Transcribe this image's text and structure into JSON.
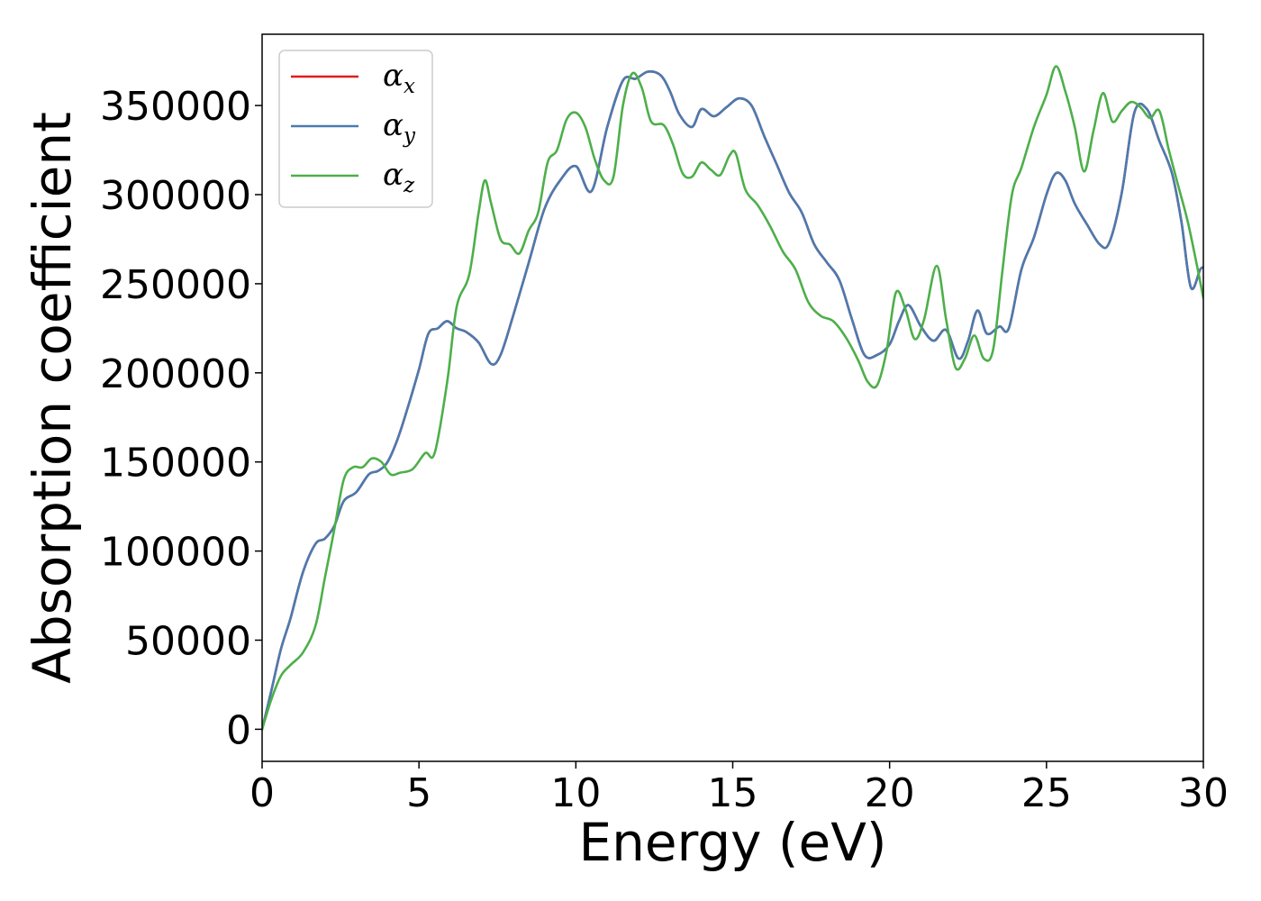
{
  "chart_data": {
    "type": "line",
    "xlabel": "Energy (eV)",
    "ylabel": "Absorption coefficient",
    "xlim": [
      0,
      30
    ],
    "ylim": [
      -18000,
      390000
    ],
    "xticks": [
      0,
      5,
      10,
      15,
      20,
      25,
      30
    ],
    "yticks": [
      0,
      50000,
      100000,
      150000,
      200000,
      250000,
      300000,
      350000
    ],
    "grid": false,
    "legend_position": "top-left",
    "series": [
      {
        "name": "αx",
        "base": "α",
        "sub": "x",
        "color": "#e41a1c",
        "x": [
          0,
          0.3,
          0.6,
          0.9,
          1.3,
          1.7,
          2.0,
          2.3,
          2.6,
          3.0,
          3.4,
          3.7,
          4.0,
          4.3,
          4.6,
          5.0,
          5.3,
          5.6,
          5.9,
          6.2,
          6.5,
          6.9,
          7.3,
          7.6,
          8.0,
          8.5,
          9.0,
          9.5,
          10.0,
          10.5,
          11.0,
          11.5,
          11.9,
          12.3,
          12.7,
          13.0,
          13.3,
          13.7,
          14.0,
          14.4,
          14.8,
          15.2,
          15.6,
          16.0,
          16.4,
          16.8,
          17.2,
          17.6,
          18.0,
          18.4,
          18.8,
          19.2,
          19.6,
          20.0,
          20.3,
          20.6,
          21.0,
          21.4,
          21.8,
          22.2,
          22.5,
          22.8,
          23.1,
          23.5,
          23.8,
          24.2,
          24.6,
          25.0,
          25.3,
          25.6,
          25.9,
          26.3,
          26.7,
          27.0,
          27.4,
          27.8,
          28.2,
          28.6,
          29.0,
          29.3,
          29.6,
          29.9,
          30.0
        ],
        "values": [
          0,
          22000,
          45000,
          62000,
          88000,
          104000,
          107000,
          114000,
          128000,
          133000,
          143000,
          145000,
          150000,
          162000,
          178000,
          202000,
          222000,
          225000,
          229000,
          225000,
          223000,
          217000,
          205000,
          210000,
          232000,
          262000,
          292000,
          308000,
          316000,
          302000,
          338000,
          364000,
          365000,
          369000,
          367000,
          358000,
          345000,
          338000,
          348000,
          344000,
          349000,
          354000,
          350000,
          333000,
          317000,
          301000,
          290000,
          272000,
          262000,
          252000,
          230000,
          210000,
          210000,
          216000,
          229000,
          238000,
          226000,
          218000,
          224000,
          208000,
          218000,
          235000,
          222000,
          226000,
          225000,
          258000,
          276000,
          300000,
          312000,
          308000,
          295000,
          283000,
          272000,
          273000,
          301000,
          346000,
          348000,
          330000,
          312000,
          285000,
          248000,
          258000,
          259000
        ]
      },
      {
        "name": "αy",
        "base": "α",
        "sub": "y",
        "color": "#4a7bb0",
        "x": [
          0,
          0.3,
          0.6,
          0.9,
          1.3,
          1.7,
          2.0,
          2.3,
          2.6,
          3.0,
          3.4,
          3.7,
          4.0,
          4.3,
          4.6,
          5.0,
          5.3,
          5.6,
          5.9,
          6.2,
          6.5,
          6.9,
          7.3,
          7.6,
          8.0,
          8.5,
          9.0,
          9.5,
          10.0,
          10.5,
          11.0,
          11.5,
          11.9,
          12.3,
          12.7,
          13.0,
          13.3,
          13.7,
          14.0,
          14.4,
          14.8,
          15.2,
          15.6,
          16.0,
          16.4,
          16.8,
          17.2,
          17.6,
          18.0,
          18.4,
          18.8,
          19.2,
          19.6,
          20.0,
          20.3,
          20.6,
          21.0,
          21.4,
          21.8,
          22.2,
          22.5,
          22.8,
          23.1,
          23.5,
          23.8,
          24.2,
          24.6,
          25.0,
          25.3,
          25.6,
          25.9,
          26.3,
          26.7,
          27.0,
          27.4,
          27.8,
          28.2,
          28.6,
          29.0,
          29.3,
          29.6,
          29.9,
          30.0
        ],
        "values": [
          0,
          22000,
          45000,
          62000,
          88000,
          104000,
          107000,
          114000,
          128000,
          133000,
          143000,
          145000,
          150000,
          162000,
          178000,
          202000,
          222000,
          225000,
          229000,
          225000,
          223000,
          217000,
          205000,
          210000,
          232000,
          262000,
          292000,
          308000,
          316000,
          302000,
          338000,
          364000,
          365000,
          369000,
          367000,
          358000,
          345000,
          338000,
          348000,
          344000,
          349000,
          354000,
          350000,
          333000,
          317000,
          301000,
          290000,
          272000,
          262000,
          252000,
          230000,
          210000,
          210000,
          216000,
          229000,
          238000,
          226000,
          218000,
          224000,
          208000,
          218000,
          235000,
          222000,
          226000,
          225000,
          258000,
          276000,
          300000,
          312000,
          308000,
          295000,
          283000,
          272000,
          273000,
          301000,
          346000,
          348000,
          330000,
          312000,
          285000,
          248000,
          258000,
          259000
        ]
      },
      {
        "name": "αz",
        "base": "α",
        "sub": "z",
        "color": "#4daf4a",
        "x": [
          0,
          0.3,
          0.6,
          0.9,
          1.3,
          1.7,
          2.0,
          2.3,
          2.6,
          2.9,
          3.2,
          3.5,
          3.8,
          4.1,
          4.4,
          4.8,
          5.2,
          5.5,
          5.9,
          6.2,
          6.6,
          6.9,
          7.1,
          7.3,
          7.6,
          7.9,
          8.2,
          8.5,
          8.8,
          9.1,
          9.4,
          9.7,
          10.0,
          10.3,
          10.6,
          10.9,
          11.2,
          11.5,
          11.8,
          12.1,
          12.4,
          12.8,
          13.1,
          13.4,
          13.7,
          14.0,
          14.3,
          14.6,
          14.9,
          15.1,
          15.4,
          15.8,
          16.2,
          16.6,
          17.0,
          17.4,
          17.8,
          18.2,
          18.6,
          19.0,
          19.3,
          19.6,
          19.9,
          20.2,
          20.5,
          20.8,
          21.1,
          21.5,
          21.8,
          22.1,
          22.4,
          22.7,
          23.0,
          23.3,
          23.6,
          23.9,
          24.2,
          24.6,
          25.0,
          25.3,
          25.6,
          25.9,
          26.2,
          26.5,
          26.8,
          27.1,
          27.4,
          27.7,
          28.0,
          28.3,
          28.6,
          28.9,
          29.2,
          29.5,
          29.8,
          30.0
        ],
        "values": [
          0,
          17000,
          30000,
          36000,
          43000,
          58000,
          85000,
          112000,
          140000,
          147000,
          147000,
          152000,
          150000,
          143000,
          144000,
          146000,
          155000,
          155000,
          195000,
          237000,
          255000,
          290000,
          308000,
          295000,
          275000,
          272000,
          267000,
          280000,
          290000,
          318000,
          325000,
          342000,
          346000,
          338000,
          320000,
          308000,
          310000,
          350000,
          368000,
          360000,
          341000,
          339000,
          328000,
          312000,
          310000,
          318000,
          314000,
          311000,
          322000,
          323000,
          303000,
          294000,
          282000,
          268000,
          258000,
          240000,
          232000,
          229000,
          220000,
          207000,
          195000,
          193000,
          212000,
          245000,
          236000,
          219000,
          230000,
          260000,
          230000,
          203000,
          208000,
          221000,
          208000,
          213000,
          258000,
          300000,
          315000,
          338000,
          356000,
          372000,
          358000,
          338000,
          313000,
          336000,
          357000,
          341000,
          347000,
          352000,
          349000,
          343000,
          347000,
          325000,
          305000,
          285000,
          260000,
          242000
        ]
      }
    ]
  }
}
